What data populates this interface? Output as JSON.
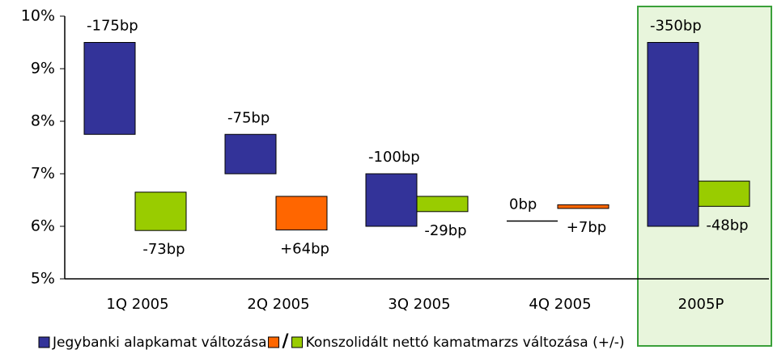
{
  "chart_data": {
    "type": "floating-bar",
    "categories": [
      "1Q 2005",
      "2Q 2005",
      "3Q 2005",
      "4Q 2005",
      "2005P"
    ],
    "ylim": [
      5,
      10
    ],
    "yticks": [
      {
        "value": 5,
        "label": "5%"
      },
      {
        "value": 6,
        "label": "6%"
      },
      {
        "value": 7,
        "label": "7%"
      },
      {
        "value": 8,
        "label": "8%"
      },
      {
        "value": 9,
        "label": "9%"
      },
      {
        "value": 10,
        "label": "10%"
      }
    ],
    "highlight_index": 4,
    "highlight_color": "#e8f5dc",
    "highlight_border": "#3aa03a",
    "legend_separator": "/",
    "series": [
      {
        "name": "Jegybanki alapkamat változása",
        "color": "#333399",
        "start": [
          9.5,
          7.75,
          7.0,
          6.1,
          9.5
        ],
        "end": [
          7.75,
          7.0,
          6.0,
          6.1,
          6.0
        ],
        "value_labels": [
          "-175bp",
          "-75bp",
          "-100bp",
          "0bp",
          "-350bp"
        ]
      },
      {
        "name": "Konszolidált nettó kamatmarzs változása (+/-)",
        "color": "#99cc00",
        "increase_color": "#ff6600",
        "start": [
          6.65,
          5.93,
          6.57,
          6.34,
          6.86
        ],
        "end": [
          5.92,
          6.57,
          6.28,
          6.41,
          6.38
        ],
        "value_labels": [
          "-73bp",
          "+64bp",
          "-29bp",
          "+7bp",
          "-48bp"
        ]
      }
    ]
  }
}
